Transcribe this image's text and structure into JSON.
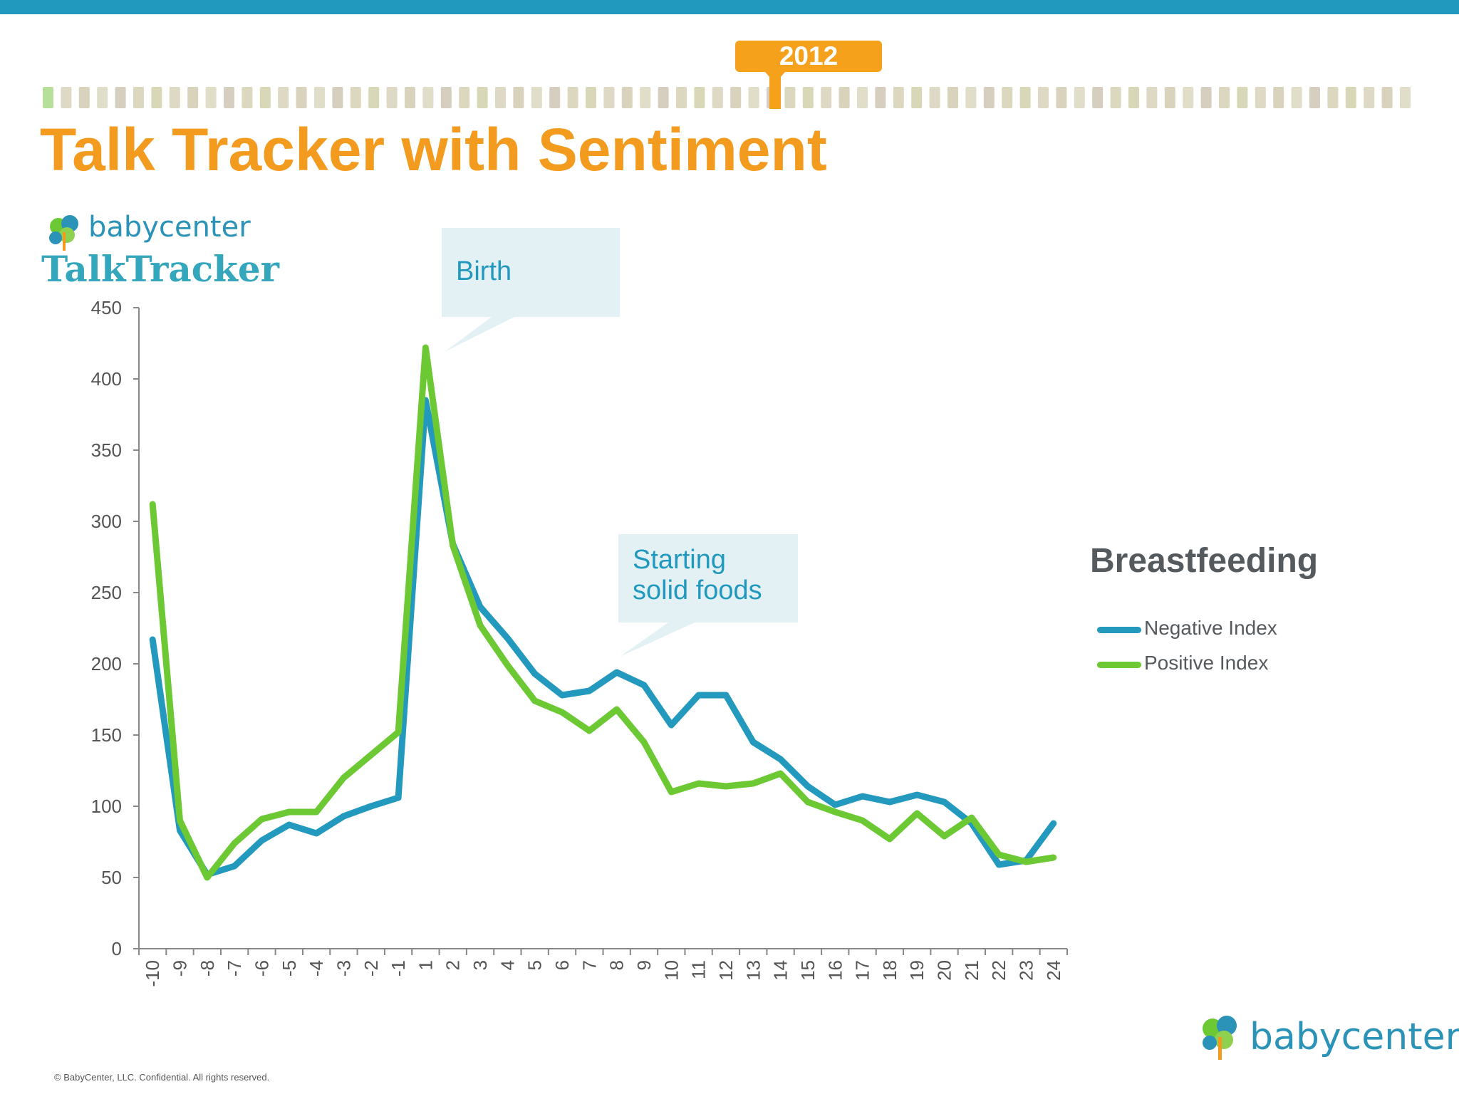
{
  "header": {
    "year": "2012",
    "title": "Talk Tracker with Sentiment"
  },
  "logos": {
    "top_brand": "babycenter",
    "top_product": "TalkTracker",
    "bottom_brand": "babycenter"
  },
  "callouts": {
    "birth": "Birth",
    "solid_foods": "Starting\nsolid foods"
  },
  "footer": "© BabyCenter, LLC. Confidential. All rights reserved.",
  "colors": {
    "accent_orange": "#f39b1f",
    "bar_blue": "#2199be",
    "negative": "#2399be",
    "positive": "#6cc934"
  },
  "chart_data": {
    "type": "line",
    "title": "Breastfeeding",
    "xlabel": "",
    "ylabel": "",
    "ylim": [
      0,
      450
    ],
    "yticks": [
      0,
      50,
      100,
      150,
      200,
      250,
      300,
      350,
      400,
      450
    ],
    "categories": [
      "-10",
      "-9",
      "-8",
      "-7",
      "-6",
      "-5",
      "-4",
      "-3",
      "-2",
      "-1",
      "1",
      "2",
      "3",
      "4",
      "5",
      "6",
      "7",
      "8",
      "9",
      "10",
      "11",
      "12",
      "13",
      "14",
      "15",
      "16",
      "17",
      "18",
      "19",
      "20",
      "21",
      "22",
      "23",
      "24"
    ],
    "series": [
      {
        "name": "Negative Index",
        "color": "#2399be",
        "values": [
          217,
          83,
          52,
          58,
          76,
          87,
          81,
          93,
          100,
          106,
          385,
          284,
          240,
          218,
          193,
          178,
          181,
          194,
          185,
          157,
          178,
          178,
          145,
          133,
          114,
          101,
          107,
          103,
          108,
          103,
          88,
          59,
          62,
          88
        ]
      },
      {
        "name": "Positive Index",
        "color": "#6cc934",
        "values": [
          312,
          90,
          50,
          74,
          91,
          96,
          96,
          120,
          136,
          152,
          422,
          283,
          227,
          199,
          174,
          166,
          153,
          168,
          145,
          110,
          116,
          114,
          116,
          123,
          103,
          96,
          90,
          77,
          95,
          79,
          92,
          66,
          61,
          64
        ]
      }
    ],
    "legend_position": "right",
    "grid": false
  }
}
